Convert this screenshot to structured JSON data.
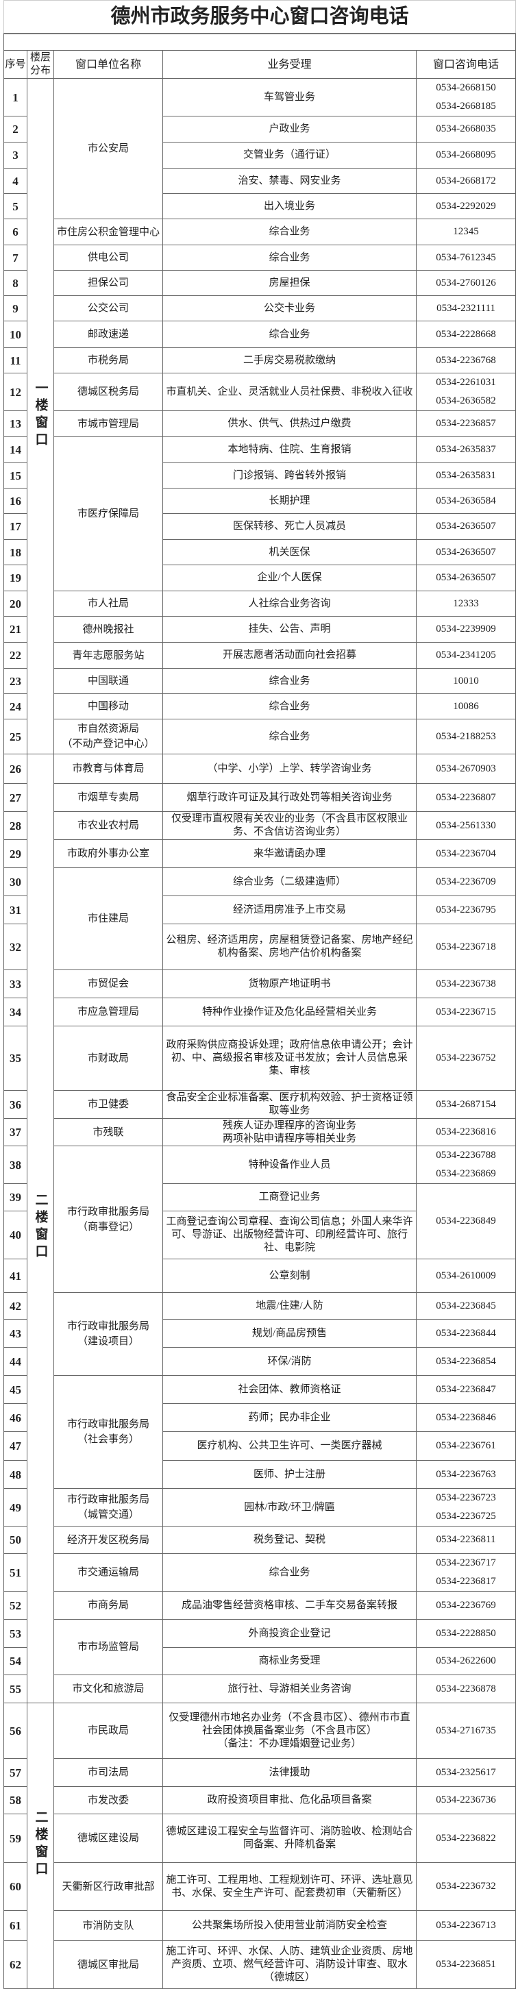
{
  "title": "德州市政务服务中心窗口咨询电话",
  "headers": {
    "seq": "序号",
    "floor": "楼层分布",
    "unit": "窗口单位名称",
    "service": "业务受理",
    "phone": "窗口咨询电话"
  },
  "groups": [
    {
      "floor": "一楼窗口",
      "units": [
        {
          "name": "市公安局",
          "services": [
            {
              "no": "1",
              "text": "车驾管业务",
              "phone": "0534-2668150\n0534-2668185"
            },
            {
              "no": "2",
              "text": "户政业务",
              "phone": "0534-2668035"
            },
            {
              "no": "3",
              "text": "交管业务（通行证）",
              "phone": "0534-2668095"
            },
            {
              "no": "4",
              "text": "治安、禁毒、网安业务",
              "phone": "0534-2668172"
            },
            {
              "no": "5",
              "text": "出入境业务",
              "phone": "0534-2292029"
            }
          ]
        },
        {
          "name": "市住房公积金管理中心",
          "services": [
            {
              "no": "6",
              "text": "综合业务",
              "phone": "12345"
            }
          ]
        },
        {
          "name": "供电公司",
          "services": [
            {
              "no": "7",
              "text": "综合业务",
              "phone": "0534-7612345"
            }
          ]
        },
        {
          "name": "担保公司",
          "services": [
            {
              "no": "8",
              "text": "房屋担保",
              "phone": "0534-2760126"
            }
          ]
        },
        {
          "name": "公交公司",
          "services": [
            {
              "no": "9",
              "text": "公交卡业务",
              "phone": "0534-2321111"
            }
          ]
        },
        {
          "name": "邮政速递",
          "services": [
            {
              "no": "10",
              "text": "综合业务",
              "phone": "0534-2228668"
            }
          ]
        },
        {
          "name": "市税务局",
          "services": [
            {
              "no": "11",
              "text": "二手房交易税款缴纳",
              "phone": "0534-2236768"
            }
          ]
        },
        {
          "name": "德城区税务局",
          "services": [
            {
              "no": "12",
              "text": "市直机关、企业、灵活就业人员社保费、非税收入征收",
              "phone": "0534-2261031\n0534-2636582"
            }
          ]
        },
        {
          "name": "市城市管理局",
          "services": [
            {
              "no": "13",
              "text": "供水、供气、供热过户缴费",
              "phone": "0534-2236857"
            }
          ]
        },
        {
          "name": "市医疗保障局",
          "services": [
            {
              "no": "14",
              "text": "本地特病、住院、生育报销",
              "phone": "0534-2635837"
            },
            {
              "no": "15",
              "text": "门诊报销、跨省转外报销",
              "phone": "0534-2635831"
            },
            {
              "no": "16",
              "text": "长期护理",
              "phone": "0534-2636584"
            },
            {
              "no": "17",
              "text": "医保转移、死亡人员减员",
              "phone": "0534-2636507"
            },
            {
              "no": "18",
              "text": "机关医保",
              "phone": "0534-2636507"
            },
            {
              "no": "19",
              "text": "企业/个人医保",
              "phone": "0534-2636507"
            }
          ]
        },
        {
          "name": "市人社局",
          "services": [
            {
              "no": "20",
              "text": "人社综合业务咨询",
              "phone": "12333"
            }
          ]
        },
        {
          "name": "德州晚报社",
          "services": [
            {
              "no": "21",
              "text": "挂失、公告、声明",
              "phone": "0534-2239909"
            }
          ]
        },
        {
          "name": "青年志愿服务站",
          "services": [
            {
              "no": "22",
              "text": "开展志愿者活动面向社会招募",
              "phone": "0534-2341205"
            }
          ]
        },
        {
          "name": "中国联通",
          "services": [
            {
              "no": "23",
              "text": "综合业务",
              "phone": "10010"
            }
          ]
        },
        {
          "name": "中国移动",
          "services": [
            {
              "no": "24",
              "text": "综合业务",
              "phone": "10086"
            }
          ]
        },
        {
          "name": "市自然资源局\n（不动产登记中心）",
          "services": [
            {
              "no": "25",
              "text": "综合业务",
              "phone": "0534-2188253"
            }
          ]
        }
      ]
    },
    {
      "floor": "二楼窗口",
      "units": [
        {
          "name": "市教育与体育局",
          "services": [
            {
              "no": "26",
              "text": "（中学、小学）上学、转学咨询业务",
              "phone": "0534-2670903"
            }
          ]
        },
        {
          "name": "市烟草专卖局",
          "services": [
            {
              "no": "27",
              "text": "烟草行政许可证及其行政处罚等相关咨询业务",
              "phone": "0534-2236807"
            }
          ]
        },
        {
          "name": "市农业农村局",
          "services": [
            {
              "no": "28",
              "text": "仅受理市直权限有关农业的业务（不含县市区权限业务、不含信访咨询业务）",
              "phone": "0534-2561330"
            }
          ]
        },
        {
          "name": "市政府外事办公室",
          "services": [
            {
              "no": "29",
              "text": "来华邀请函办理",
              "phone": "0534-2236704"
            }
          ]
        },
        {
          "name": "市住建局",
          "services": [
            {
              "no": "30",
              "text": "综合业务（二级建造师）",
              "phone": "0534-2236709"
            },
            {
              "no": "31",
              "text": "经济适用房准予上市交易",
              "phone": "0534-2236795"
            },
            {
              "no": "32",
              "text": "公租房、经济适用房，房屋租赁登记备案、房地产经纪机构备案、房地产估价机构备案",
              "phone": "0534-2236718"
            }
          ]
        },
        {
          "name": "市贸促会",
          "services": [
            {
              "no": "33",
              "text": "货物原产地证明书",
              "phone": "0534-2236738"
            }
          ]
        },
        {
          "name": "市应急管理局",
          "services": [
            {
              "no": "34",
              "text": "特种作业操作证及危化品经营相关业务",
              "phone": "0534-2236715"
            }
          ]
        },
        {
          "name": "市财政局",
          "services": [
            {
              "no": "35",
              "text": "政府采购供应商投诉处理；政府信息依申请公开；会计初、中、高级报名审核及证书发放；会计人员信息采集、审核",
              "phone": "0534-2236752"
            }
          ]
        },
        {
          "name": "市卫健委",
          "services": [
            {
              "no": "36",
              "text": "食品安全企业标准备案、医疗机构效验、护士资格证领取等业务",
              "phone": "0534-2687154"
            }
          ]
        },
        {
          "name": "市残联",
          "services": [
            {
              "no": "37",
              "text": "残疾人证办理程序的咨询业务\n两项补贴申请程序等相关业务",
              "phone": "0534-2236816"
            }
          ]
        },
        {
          "name": "市行政审批服务局\n（商事登记）",
          "services": [
            {
              "no": "38",
              "text": "特种设备作业人员",
              "phone": "0534-2236788\n0534-2236869"
            },
            {
              "no": "39",
              "text": "工商登记业务",
              "phone": "0534-2236849",
              "phone_shared_with_next": true
            },
            {
              "no": "40",
              "text": "工商登记查询公司章程、查询公司信息；外国人来华许可、导游证、出版物经营许可、印刷经营许可、旅行社、电影院",
              "phone": ""
            },
            {
              "no": "41",
              "text": "公章刻制",
              "phone": "0534-2610009"
            }
          ]
        },
        {
          "name": "市行政审批服务局\n（建设项目）",
          "services": [
            {
              "no": "42",
              "text": "地震/住建/人防",
              "phone": "0534-2236845"
            },
            {
              "no": "43",
              "text": "规划/商品房预售",
              "phone": "0534-2236844"
            },
            {
              "no": "44",
              "text": "环保/消防",
              "phone": "0534-2236854"
            }
          ]
        },
        {
          "name": "市行政审批服务局\n（社会事务）",
          "services": [
            {
              "no": "45",
              "text": "社会团体、教师资格证",
              "phone": "0534-2236847"
            },
            {
              "no": "46",
              "text": "药师；民办非企业",
              "phone": "0534-2236846"
            },
            {
              "no": "47",
              "text": "医疗机构、公共卫生许可、一类医疗器械",
              "phone": "0534-2236761"
            },
            {
              "no": "48",
              "text": "医师、护士注册",
              "phone": "0534-2236763"
            }
          ]
        },
        {
          "name": "市行政审批服务局\n（城管交通）",
          "services": [
            {
              "no": "49",
              "text": "园林/市政/环卫/牌匾",
              "phone": "0534-2236723\n0534-2236725"
            }
          ]
        },
        {
          "name": "经济开发区税务局",
          "services": [
            {
              "no": "50",
              "text": "税务登记、契税",
              "phone": "0534-2236811"
            }
          ]
        },
        {
          "name": "市交通运输局",
          "services": [
            {
              "no": "51",
              "text": "综合业务",
              "phone": "0534-2236717\n0534-2236817"
            }
          ]
        },
        {
          "name": "市商务局",
          "services": [
            {
              "no": "52",
              "text": "成品油零售经营资格审核、二手车交易备案转报",
              "phone": "0534-2236769"
            }
          ]
        },
        {
          "name": "市市场监管局",
          "services": [
            {
              "no": "53",
              "text": "外商投资企业登记",
              "phone": "0534-2228850"
            },
            {
              "no": "54",
              "text": "商标业务受理",
              "phone": "0534-2622600"
            }
          ]
        },
        {
          "name": "市文化和旅游局",
          "services": [
            {
              "no": "55",
              "text": "旅行社、导游相关业务咨询",
              "phone": "0534-2236878"
            }
          ]
        }
      ]
    },
    {
      "floor": "二楼窗口",
      "units": [
        {
          "name": "市民政局",
          "services": [
            {
              "no": "56",
              "text": "仅受理德州市地名办业务（不含县市区）、德州市市直社会团体换届备案业务（不含县市区）\n（备注：不办理婚姻登记业务）",
              "phone": "0534-2716735"
            }
          ]
        },
        {
          "name": "市司法局",
          "services": [
            {
              "no": "57",
              "text": "法律援助",
              "phone": "0534-2325617"
            }
          ]
        },
        {
          "name": "市发改委",
          "services": [
            {
              "no": "58",
              "text": "政府投资项目审批、危化品项目备案",
              "phone": "0534-2236736"
            }
          ]
        },
        {
          "name": "德城区建设局",
          "services": [
            {
              "no": "59",
              "text": "德城区建设工程安全与监督许可、消防验收、检测站合同备案、升降机备案",
              "phone": "0534-2236822"
            }
          ]
        },
        {
          "name": "天衢新区行政审批部",
          "services": [
            {
              "no": "60",
              "text": "施工许可、工程用地、工程规划许可、环评、选址意见书、水保、安全生产许可、配套费初审（天衢新区）",
              "phone": "0534-2236732"
            }
          ]
        },
        {
          "name": "市消防支队",
          "services": [
            {
              "no": "61",
              "text": "公共聚集场所投入使用营业前消防安全检查",
              "phone": "0534-2236713"
            }
          ]
        },
        {
          "name": "德城区审批局",
          "services": [
            {
              "no": "62",
              "text": "施工许可、环评、水保、人防、建筑业企业资质、房地产资质、立项、燃气经营许可、消防设计审查、取水（德城区）",
              "phone": "0534-2236851"
            }
          ]
        }
      ]
    }
  ]
}
